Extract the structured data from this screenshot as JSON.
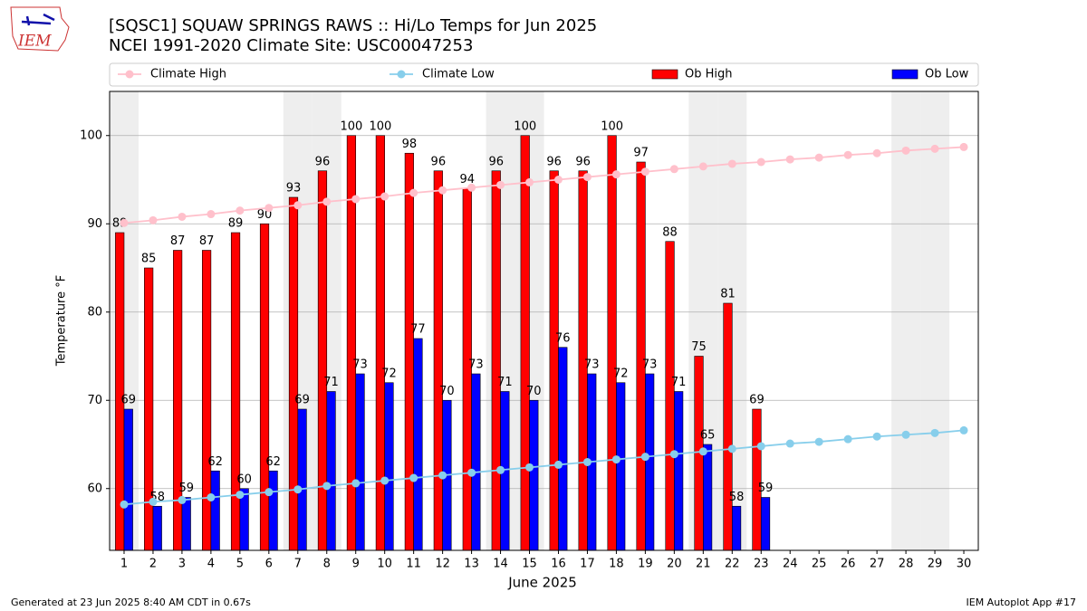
{
  "logo_text": "IEM",
  "footer": {
    "left": "Generated at 23 Jun 2025 8:40 AM CDT in 0.67s",
    "right": "IEM Autoplot App #17"
  },
  "chart_data": {
    "type": "bar",
    "title": "[SQSC1] SQUAW SPRINGS RAWS :: Hi/Lo Temps for Jun 2025",
    "subtitle": "NCEI 1991-2020 Climate Site: USC00047253",
    "x_label": "June 2025",
    "y_label": "Temperature °F",
    "x": [
      1,
      2,
      3,
      4,
      5,
      6,
      7,
      8,
      9,
      10,
      11,
      12,
      13,
      14,
      15,
      16,
      17,
      18,
      19,
      20,
      21,
      22,
      23,
      24,
      25,
      26,
      27,
      28,
      29,
      30
    ],
    "xlim": [
      0.5,
      30.5
    ],
    "xticks": [
      1,
      2,
      3,
      4,
      5,
      6,
      7,
      8,
      9,
      10,
      11,
      12,
      13,
      14,
      15,
      16,
      17,
      18,
      19,
      20,
      21,
      22,
      23,
      24,
      25,
      26,
      27,
      28,
      29,
      30
    ],
    "ylim": [
      53,
      105
    ],
    "yticks": [
      60,
      70,
      80,
      90,
      100
    ],
    "grid": true,
    "shaded": [
      1,
      7,
      8,
      14,
      15,
      21,
      22,
      28,
      29
    ],
    "shade_color": "#eeeeee",
    "legend": "top",
    "series": [
      {
        "name": "Climate High",
        "type": "line",
        "color": "#ffc0cb",
        "values": [
          90.1,
          90.4,
          90.8,
          91.1,
          91.5,
          91.8,
          92.1,
          92.5,
          92.8,
          93.1,
          93.5,
          93.8,
          94.1,
          94.4,
          94.7,
          95.0,
          95.3,
          95.6,
          95.9,
          96.2,
          96.5,
          96.8,
          97.0,
          97.3,
          97.5,
          97.8,
          98.0,
          98.3,
          98.5,
          98.7
        ]
      },
      {
        "name": "Climate Low",
        "type": "line",
        "color": "#87ceeb",
        "values": [
          58.2,
          58.5,
          58.7,
          59.0,
          59.3,
          59.6,
          59.9,
          60.3,
          60.6,
          60.9,
          61.2,
          61.5,
          61.8,
          62.1,
          62.4,
          62.7,
          63.0,
          63.3,
          63.6,
          63.9,
          64.2,
          64.5,
          64.8,
          65.1,
          65.3,
          65.6,
          65.9,
          66.1,
          66.3,
          66.6
        ]
      },
      {
        "name": "Ob High",
        "type": "bar",
        "color": "#ff0000",
        "values": [
          89,
          85,
          87,
          87,
          89,
          90,
          93,
          96,
          100,
          100,
          98,
          96,
          94,
          96,
          100,
          96,
          96,
          100,
          97,
          88,
          75,
          81,
          69,
          null,
          null,
          null,
          null,
          null,
          null,
          null
        ]
      },
      {
        "name": "Ob Low",
        "type": "bar",
        "color": "#0000ff",
        "values": [
          69,
          58,
          59,
          62,
          60,
          62,
          69,
          71,
          73,
          72,
          77,
          70,
          73,
          71,
          70,
          76,
          73,
          72,
          73,
          71,
          65,
          58,
          59,
          null,
          null,
          null,
          null,
          null,
          null,
          null
        ]
      }
    ]
  }
}
